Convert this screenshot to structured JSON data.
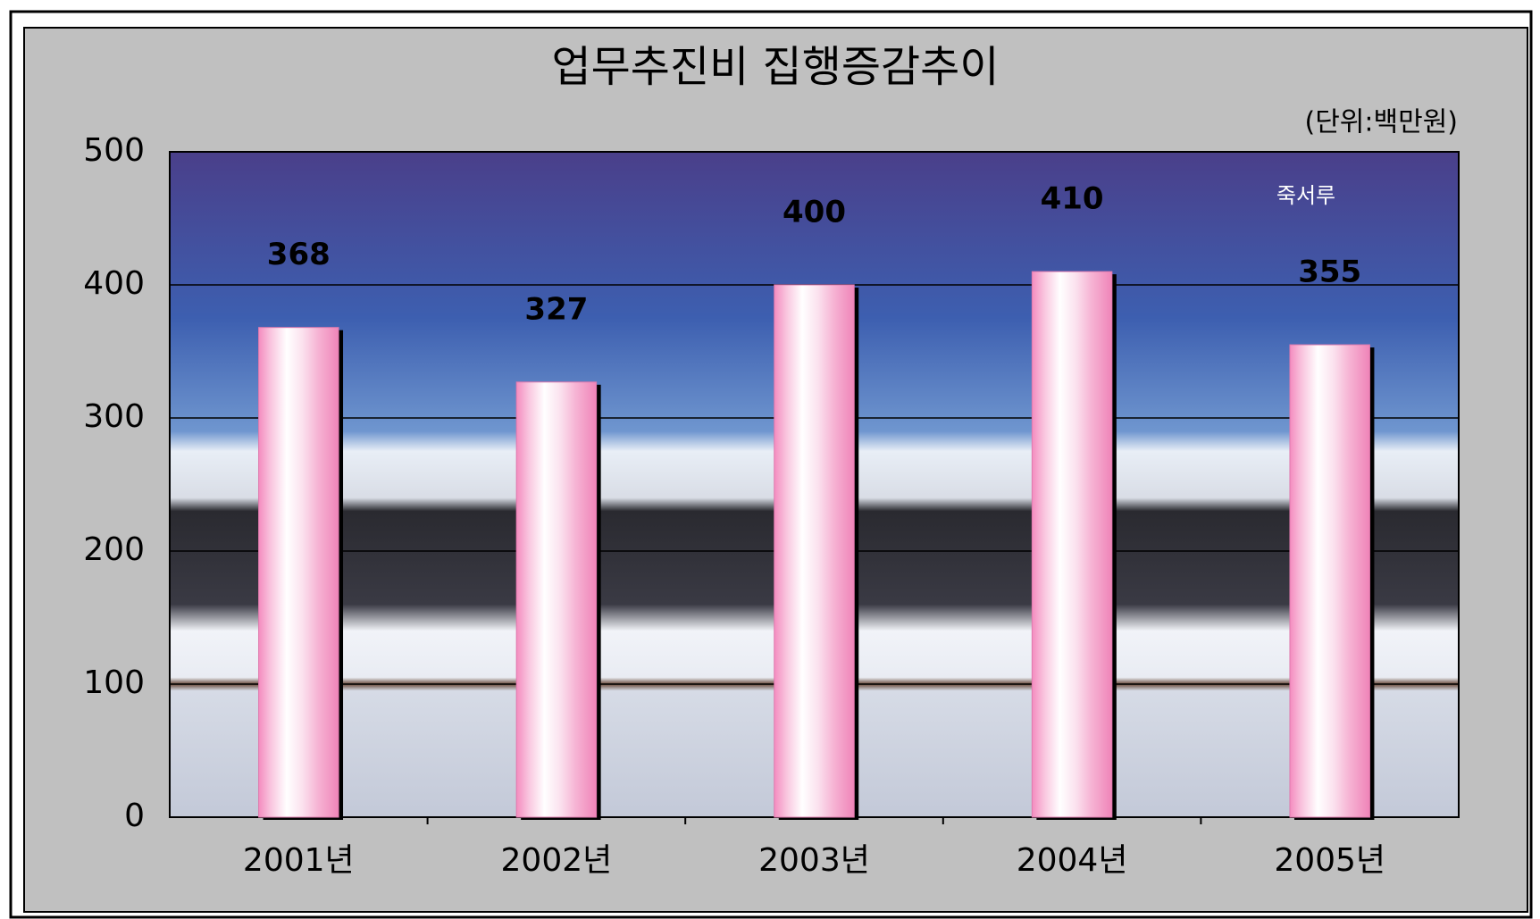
{
  "chart_data": {
    "type": "bar",
    "title": "업무추진비 집행증감추이",
    "subtitle": "(단위:백만원)",
    "annotation": "죽서루",
    "categories": [
      "2001년",
      "2002년",
      "2003년",
      "2004년",
      "2005년"
    ],
    "values": [
      368,
      327,
      400,
      410,
      355
    ],
    "color": "#f4a6cf",
    "ylim": [
      0,
      500
    ],
    "yticks": [
      0,
      100,
      200,
      300,
      400,
      500
    ],
    "grid": true
  }
}
